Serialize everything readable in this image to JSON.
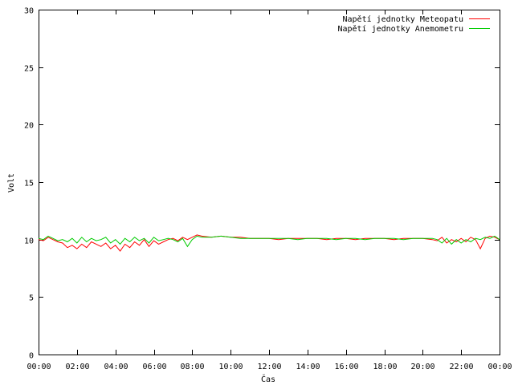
{
  "chart_data": {
    "type": "line",
    "xlabel": "Čas",
    "ylabel": "Volt",
    "ylim": [
      0,
      30
    ],
    "yticks": [
      0,
      5,
      10,
      15,
      20,
      25,
      30
    ],
    "xlim_hours": [
      0,
      24
    ],
    "xticks": [
      "00:00",
      "02:00",
      "04:00",
      "06:00",
      "08:00",
      "10:00",
      "12:00",
      "14:00",
      "16:00",
      "18:00",
      "20:00",
      "22:00",
      "00:00"
    ],
    "legend_position": "top-right",
    "grid": false,
    "series": [
      {
        "name": "Napětí jednotky Meteopatu",
        "color": "#ff0000",
        "x": [
          0,
          0.25,
          0.5,
          0.75,
          1,
          1.25,
          1.5,
          1.75,
          2,
          2.25,
          2.5,
          2.75,
          3,
          3.25,
          3.5,
          3.75,
          4,
          4.25,
          4.5,
          4.75,
          5,
          5.25,
          5.5,
          5.75,
          6,
          6.25,
          6.5,
          6.75,
          7,
          7.25,
          7.5,
          7.75,
          8,
          8.25,
          8.5,
          9,
          9.5,
          10,
          10.5,
          11,
          11.5,
          12,
          12.5,
          13,
          13.5,
          14,
          14.5,
          15,
          15.5,
          16,
          16.5,
          17,
          17.5,
          18,
          18.5,
          19,
          19.5,
          20,
          20.5,
          20.75,
          21,
          21.25,
          21.5,
          21.75,
          22,
          22.25,
          22.5,
          22.75,
          23,
          23.25,
          23.5,
          23.75,
          24
        ],
        "y": [
          10.0,
          9.9,
          10.2,
          10.0,
          9.8,
          9.7,
          9.3,
          9.5,
          9.2,
          9.6,
          9.3,
          9.8,
          9.6,
          9.4,
          9.7,
          9.2,
          9.5,
          9.0,
          9.6,
          9.3,
          9.8,
          9.5,
          10.0,
          9.4,
          9.9,
          9.6,
          9.8,
          10.0,
          10.1,
          9.9,
          10.2,
          10.0,
          10.2,
          10.4,
          10.3,
          10.2,
          10.3,
          10.2,
          10.2,
          10.1,
          10.1,
          10.1,
          10.0,
          10.1,
          10.1,
          10.1,
          10.1,
          10.0,
          10.1,
          10.1,
          10.0,
          10.1,
          10.1,
          10.1,
          10.0,
          10.1,
          10.1,
          10.1,
          10.0,
          9.9,
          10.2,
          9.7,
          10.0,
          9.8,
          10.1,
          9.8,
          10.2,
          10.0,
          9.2,
          10.1,
          10.3,
          10.2,
          10.0
        ]
      },
      {
        "name": "Napětí jednotky Anemometru",
        "color": "#00cc00",
        "x": [
          0,
          0.25,
          0.5,
          0.75,
          1,
          1.25,
          1.5,
          1.75,
          2,
          2.25,
          2.5,
          2.75,
          3,
          3.25,
          3.5,
          3.75,
          4,
          4.25,
          4.5,
          4.75,
          5,
          5.25,
          5.5,
          5.75,
          6,
          6.25,
          6.5,
          6.75,
          7,
          7.25,
          7.5,
          7.75,
          8,
          8.25,
          8.5,
          9,
          9.5,
          10,
          10.5,
          11,
          11.5,
          12,
          12.5,
          13,
          13.5,
          14,
          14.5,
          15,
          15.5,
          16,
          16.5,
          17,
          17.5,
          18,
          18.5,
          19,
          19.5,
          20,
          20.5,
          20.75,
          21,
          21.25,
          21.5,
          21.75,
          22,
          22.25,
          22.5,
          22.75,
          23,
          23.25,
          23.5,
          23.75,
          24
        ],
        "y": [
          10.1,
          10.0,
          10.3,
          10.1,
          9.9,
          10.0,
          9.8,
          10.1,
          9.7,
          10.2,
          9.8,
          10.1,
          9.9,
          10.0,
          10.2,
          9.7,
          10.0,
          9.6,
          10.1,
          9.8,
          10.2,
          9.9,
          10.1,
          9.7,
          10.2,
          9.9,
          10.0,
          10.1,
          10.0,
          9.8,
          10.1,
          9.4,
          10.0,
          10.3,
          10.2,
          10.2,
          10.3,
          10.2,
          10.1,
          10.1,
          10.1,
          10.1,
          10.1,
          10.1,
          10.0,
          10.1,
          10.1,
          10.1,
          10.0,
          10.1,
          10.1,
          10.0,
          10.1,
          10.1,
          10.1,
          10.0,
          10.1,
          10.1,
          10.1,
          10.0,
          9.7,
          10.1,
          9.6,
          10.0,
          9.7,
          10.0,
          9.8,
          10.1,
          10.0,
          10.2,
          10.1,
          10.3,
          10.0
        ]
      }
    ]
  }
}
